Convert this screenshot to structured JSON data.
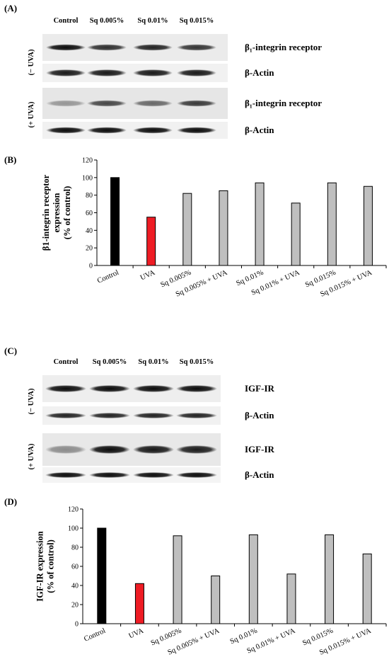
{
  "panels": {
    "A": "(A)",
    "B": "(B)",
    "C": "(C)",
    "D": "(D)"
  },
  "blot_A": {
    "lanes": [
      "Control",
      "Sq 0.005%",
      "Sq 0.01%",
      "Sq 0.015%"
    ],
    "conditions": [
      "(− UVA)",
      "(+ UVA)"
    ],
    "rows": [
      {
        "label": "β₁-integrin receptor",
        "condition": 0,
        "intensity": [
          0.95,
          0.8,
          0.85,
          0.78
        ]
      },
      {
        "label": "β-Actin",
        "condition": 0,
        "intensity": [
          0.9,
          0.9,
          0.9,
          0.9
        ]
      },
      {
        "label": "β₁-integrin receptor",
        "condition": 1,
        "intensity": [
          0.35,
          0.7,
          0.55,
          0.75
        ]
      },
      {
        "label": "β-Actin",
        "condition": 1,
        "intensity": [
          0.95,
          0.95,
          0.95,
          0.95
        ]
      }
    ]
  },
  "blot_C": {
    "lanes": [
      "Control",
      "Sq 0.005%",
      "Sq 0.01%",
      "Sq 0.015%"
    ],
    "conditions": [
      "(− UVA)",
      "(+ UVA)"
    ],
    "rows": [
      {
        "label": "IGF-IR",
        "condition": 0,
        "intensity": [
          0.95,
          0.95,
          0.95,
          0.95
        ]
      },
      {
        "label": "β-Actin",
        "condition": 0,
        "intensity": [
          0.85,
          0.85,
          0.85,
          0.85
        ]
      },
      {
        "label": "IGF-IR",
        "condition": 1,
        "intensity": [
          0.4,
          0.95,
          0.9,
          0.88
        ]
      },
      {
        "label": "β-Actin",
        "condition": 1,
        "intensity": [
          0.95,
          0.95,
          0.95,
          0.95
        ]
      }
    ]
  },
  "colors": {
    "control": "#000000",
    "uva": "#ee1c24",
    "other": "#bfbfbf"
  },
  "chart_data": [
    {
      "type": "bar",
      "categories": [
        "Control",
        "UVA",
        "Sq 0.005%",
        "Sq 0.005% + UVA",
        "Sq 0.01%",
        "Sq 0.01% + UVA",
        "Sq 0.015%",
        "Sq 0.015% + UVA"
      ],
      "values": [
        100,
        55,
        82,
        85,
        94,
        71,
        94,
        90
      ],
      "ylabel": "β1-integrin receptor expression (% of control)",
      "ylabel_lines": [
        "β1-integrin receptor",
        "expression",
        "(% of control)"
      ],
      "ylim": [
        0,
        120
      ],
      "yticks": [
        0,
        20,
        40,
        60,
        80,
        100,
        120
      ],
      "grid": false
    },
    {
      "type": "bar",
      "categories": [
        "Control",
        "UVA",
        "Sq 0.005%",
        "Sq 0.005% + UVA",
        "Sq 0.01%",
        "Sq 0.01% + UVA",
        "Sq 0.015%",
        "Sq 0.015% + UVA"
      ],
      "values": [
        100,
        42,
        92,
        50,
        93,
        52,
        93,
        73
      ],
      "ylabel": "IGF-IR expression (% of control)",
      "ylabel_lines": [
        "IGF-IR expression",
        "(% of control)"
      ],
      "ylim": [
        0,
        120
      ],
      "yticks": [
        0,
        20,
        40,
        60,
        80,
        100,
        120
      ],
      "grid": false
    }
  ]
}
